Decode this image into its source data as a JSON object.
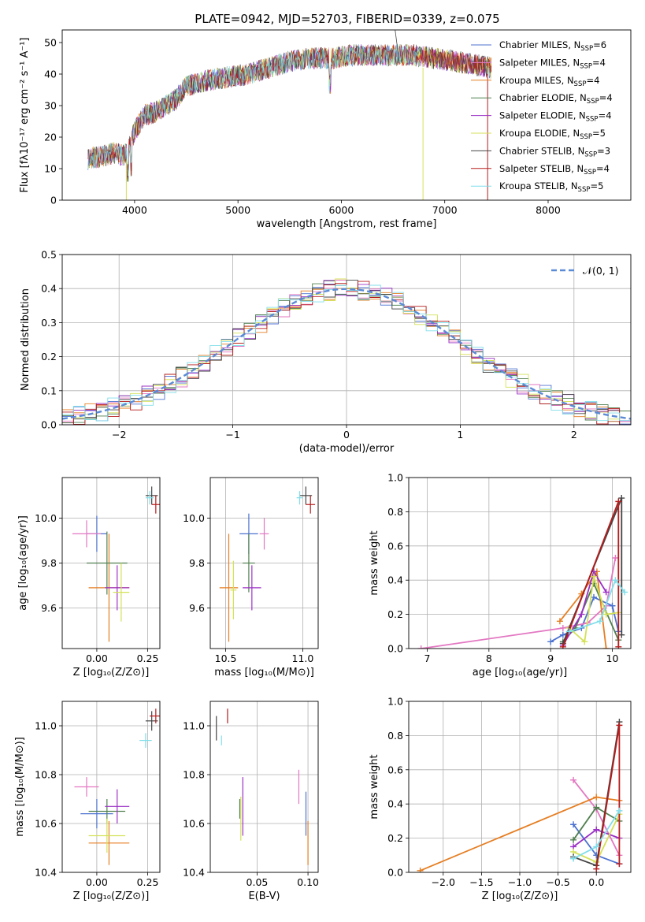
{
  "figure": {
    "title": "PLATE=0942, MJD=52703, FIBERID=0339, z=0.075",
    "colors": [
      "#4c72d0",
      "#e377c2",
      "#e67e22",
      "#4f7f4f",
      "#9b30c6",
      "#d4e157",
      "#444444",
      "#b71c1c",
      "#80deea"
    ],
    "gaussian_color": "#5b8ad6",
    "grid_color": "#b0b0b0"
  },
  "chart_data": [
    {
      "type": "line",
      "panel": "spectrum",
      "xlabel": "wavelength [Angstrom, rest frame]",
      "ylabel": "Flux [fλ10⁻¹⁷ erg cm⁻² s⁻¹ A⁻¹]",
      "xlim": [
        3300,
        8800
      ],
      "ylim": [
        0,
        54
      ],
      "xticks": [
        4000,
        5000,
        6000,
        7000,
        8000
      ],
      "yticks": [
        0,
        10,
        20,
        30,
        40,
        50
      ],
      "grid": false,
      "legend_position": "top-right",
      "envelope": {
        "x": [
          3550,
          3700,
          3800,
          3900,
          3950,
          4000,
          4100,
          4200,
          4300,
          4400,
          4500,
          4700,
          4900,
          5100,
          5300,
          5500,
          5700,
          5900,
          6100,
          6300,
          6500,
          6700,
          6900,
          7100,
          7300,
          7450
        ],
        "y": [
          13,
          14,
          15,
          14,
          17,
          22,
          27,
          28,
          30,
          32,
          36,
          38,
          39,
          40,
          42,
          44,
          45,
          45,
          46,
          46,
          46,
          46,
          45,
          44,
          43,
          42
        ]
      },
      "series": [
        {
          "name": "Chabrier MILES, N",
          "sub": "SSP",
          "suffix": "=6"
        },
        {
          "name": "Salpeter MILES, N",
          "sub": "SSP",
          "suffix": "=4"
        },
        {
          "name": "Kroupa MILES, N",
          "sub": "SSP",
          "suffix": "=4"
        },
        {
          "name": "Chabrier ELODIE, N",
          "sub": "SSP",
          "suffix": "=4"
        },
        {
          "name": "Salpeter ELODIE, N",
          "sub": "SSP",
          "suffix": "=4"
        },
        {
          "name": "Kroupa ELODIE, N",
          "sub": "SSP",
          "suffix": "=5"
        },
        {
          "name": "Chabrier STELIB, N",
          "sub": "SSP",
          "suffix": "=3"
        },
        {
          "name": "Salpeter STELIB, N",
          "sub": "SSP",
          "suffix": "=4"
        },
        {
          "name": "Kroupa STELIB, N",
          "sub": "SSP",
          "suffix": "=5"
        }
      ]
    },
    {
      "type": "histogram",
      "panel": "residuals",
      "xlabel": "(data-model)/error",
      "ylabel": "Normed distribution",
      "xlim": [
        -2.5,
        2.5
      ],
      "ylim": [
        0,
        0.5
      ],
      "xticks": [
        -2,
        -1,
        0,
        1,
        2
      ],
      "yticks": [
        0.0,
        0.1,
        0.2,
        0.3,
        0.4,
        0.5
      ],
      "grid": true,
      "legend": "𝒩(0, 1)",
      "legend_position": "top-right",
      "bin_edges_start": -2.5,
      "bin_width": 0.1,
      "n_bins": 50
    },
    {
      "type": "scatter",
      "panel": "age-vs-Z",
      "xlabel": "Z [log₁₀(Z/Z⊙)]",
      "ylabel": "age  [log₁₀(age/yr)]",
      "xlim": [
        -0.17,
        0.31
      ],
      "ylim": [
        9.42,
        10.18
      ],
      "xticks": [
        0.0,
        0.25
      ],
      "xtick_labels": [
        "0.00",
        "0.25"
      ],
      "yticks": [
        9.6,
        9.8,
        10.0
      ],
      "grid": true,
      "points": [
        {
          "x": 0.0,
          "y": 9.93,
          "xerr": 0.05,
          "yerr": 0.08
        },
        {
          "x": -0.05,
          "y": 9.93,
          "xerr": 0.07,
          "yerr": 0.06
        },
        {
          "x": 0.06,
          "y": 9.69,
          "xerr": 0.1,
          "yerr": 0.24
        },
        {
          "x": 0.05,
          "y": 9.8,
          "xerr": 0.1,
          "yerr": 0.14
        },
        {
          "x": 0.1,
          "y": 9.69,
          "xerr": 0.06,
          "yerr": 0.1
        },
        {
          "x": 0.12,
          "y": 9.67,
          "xerr": 0.04,
          "yerr": 0.13
        },
        {
          "x": 0.27,
          "y": 10.1,
          "xerr": 0.03,
          "yerr": 0.04
        },
        {
          "x": 0.29,
          "y": 10.06,
          "xerr": 0.02,
          "yerr": 0.04
        },
        {
          "x": 0.26,
          "y": 10.09,
          "xerr": 0.02,
          "yerr": 0.03
        }
      ]
    },
    {
      "type": "scatter",
      "panel": "age-vs-mass",
      "xlabel": "mass [log₁₀(M/M⊙)]",
      "xlim": [
        10.4,
        11.1
      ],
      "ylim": [
        9.42,
        10.18
      ],
      "xticks": [
        10.5,
        11.0
      ],
      "xtick_labels": [
        "10.5",
        "11.0"
      ],
      "yticks": [
        9.6,
        9.8,
        10.0
      ],
      "grid": true,
      "points": [
        {
          "x": 10.65,
          "y": 9.93,
          "xerr": 0.06,
          "yerr": 0.09
        },
        {
          "x": 10.75,
          "y": 9.93,
          "xerr": 0.03,
          "yerr": 0.07
        },
        {
          "x": 10.52,
          "y": 9.69,
          "xerr": 0.06,
          "yerr": 0.24
        },
        {
          "x": 10.65,
          "y": 9.8,
          "xerr": 0.04,
          "yerr": 0.13
        },
        {
          "x": 10.67,
          "y": 9.69,
          "xerr": 0.06,
          "yerr": 0.1
        },
        {
          "x": 10.55,
          "y": 9.68,
          "xerr": 0.02,
          "yerr": 0.13
        },
        {
          "x": 11.02,
          "y": 10.1,
          "xerr": 0.04,
          "yerr": 0.04
        },
        {
          "x": 11.05,
          "y": 10.06,
          "xerr": 0.03,
          "yerr": 0.04
        },
        {
          "x": 10.98,
          "y": 10.09,
          "xerr": 0.02,
          "yerr": 0.03
        }
      ]
    },
    {
      "type": "line",
      "panel": "weight-vs-age",
      "xlabel": "age  [log₁₀(age/yr)]",
      "ylabel": "mass weight",
      "xlim": [
        6.7,
        10.3
      ],
      "ylim": [
        0,
        1.0
      ],
      "xticks": [
        7,
        8,
        9,
        10
      ],
      "yticks": [
        0.0,
        0.2,
        0.4,
        0.6,
        0.8,
        1.0
      ],
      "grid": true,
      "series": [
        {
          "x": [
            9.0,
            9.2,
            9.5,
            9.7,
            10.0,
            10.1
          ],
          "y": [
            0.04,
            0.08,
            0.12,
            0.3,
            0.25,
            0.1
          ]
        },
        {
          "x": [
            6.9,
            9.2,
            9.6,
            9.9,
            10.05
          ],
          "y": [
            0.0,
            0.12,
            0.15,
            0.25,
            0.53
          ]
        },
        {
          "x": [
            9.15,
            9.5,
            9.75,
            9.9
          ],
          "y": [
            0.16,
            0.32,
            0.45,
            0.0
          ]
        },
        {
          "x": [
            9.2,
            9.4,
            9.7,
            10.1
          ],
          "y": [
            0.04,
            0.12,
            0.38,
            0.05
          ]
        },
        {
          "x": [
            9.2,
            9.5,
            9.7,
            9.9
          ],
          "y": [
            0.02,
            0.2,
            0.45,
            0.33
          ]
        },
        {
          "x": [
            9.3,
            9.55,
            9.7,
            9.9,
            10.1
          ],
          "y": [
            0.12,
            0.04,
            0.42,
            0.2,
            0.21
          ]
        },
        {
          "x": [
            9.2,
            10.15,
            10.15
          ],
          "y": [
            0.03,
            0.88,
            0.08
          ]
        },
        {
          "x": [
            9.2,
            10.1,
            10.1
          ],
          "y": [
            0.01,
            0.86,
            0.01
          ]
        },
        {
          "x": [
            9.3,
            9.8,
            10.05,
            10.2
          ],
          "y": [
            0.1,
            0.16,
            0.4,
            0.33
          ]
        }
      ]
    },
    {
      "type": "scatter",
      "panel": "mass-vs-Z",
      "xlabel": "Z [log₁₀(Z/Z⊙)]",
      "ylabel": "mass [log₁₀(M/M⊙)]",
      "xlim": [
        -0.17,
        0.31
      ],
      "ylim": [
        10.4,
        11.1
      ],
      "xticks": [
        0.0,
        0.25
      ],
      "xtick_labels": [
        "0.00",
        "0.25"
      ],
      "yticks": [
        10.4,
        10.6,
        10.8,
        11.0
      ],
      "grid": true,
      "points": [
        {
          "x": 0.0,
          "y": 10.64,
          "xerr": 0.08,
          "yerr": 0.06
        },
        {
          "x": -0.05,
          "y": 10.75,
          "xerr": 0.06,
          "yerr": 0.04
        },
        {
          "x": 0.06,
          "y": 10.52,
          "xerr": 0.1,
          "yerr": 0.09
        },
        {
          "x": 0.05,
          "y": 10.65,
          "xerr": 0.09,
          "yerr": 0.05
        },
        {
          "x": 0.1,
          "y": 10.67,
          "xerr": 0.06,
          "yerr": 0.07
        },
        {
          "x": 0.05,
          "y": 10.55,
          "xerr": 0.09,
          "yerr": 0.07
        },
        {
          "x": 0.27,
          "y": 11.02,
          "xerr": 0.03,
          "yerr": 0.04
        },
        {
          "x": 0.29,
          "y": 11.04,
          "xerr": 0.03,
          "yerr": 0.03
        },
        {
          "x": 0.24,
          "y": 10.94,
          "xerr": 0.03,
          "yerr": 0.03
        }
      ]
    },
    {
      "type": "scatter",
      "panel": "mass-vs-EBV",
      "xlabel": "E(B-V)",
      "xlim": [
        0.004,
        0.11
      ],
      "ylim": [
        10.4,
        11.1
      ],
      "xticks": [
        0.05,
        0.1
      ],
      "xtick_labels": [
        "0.05",
        "0.10"
      ],
      "yticks": [
        10.4,
        10.6,
        10.8,
        11.0
      ],
      "grid": true,
      "points": [
        {
          "x": 0.098,
          "y": 10.64,
          "xerr": 0.0,
          "yerr": 0.09
        },
        {
          "x": 0.091,
          "y": 10.75,
          "xerr": 0.0,
          "yerr": 0.07
        },
        {
          "x": 0.1,
          "y": 10.52,
          "xerr": 0.0,
          "yerr": 0.09
        },
        {
          "x": 0.033,
          "y": 10.66,
          "xerr": 0.0,
          "yerr": 0.04
        },
        {
          "x": 0.036,
          "y": 10.67,
          "xerr": 0.0,
          "yerr": 0.12
        },
        {
          "x": 0.034,
          "y": 10.62,
          "xerr": 0.0,
          "yerr": 0.09
        },
        {
          "x": 0.01,
          "y": 10.99,
          "xerr": 0.0,
          "yerr": 0.05
        },
        {
          "x": 0.021,
          "y": 11.04,
          "xerr": 0.0,
          "yerr": 0.03
        },
        {
          "x": 0.015,
          "y": 10.94,
          "xerr": 0.0,
          "yerr": 0.02
        }
      ]
    },
    {
      "type": "line",
      "panel": "weight-vs-Z",
      "xlabel": "Z [log₁₀(Z/Z⊙)]",
      "ylabel": "mass weight",
      "xlim": [
        -2.45,
        0.45
      ],
      "ylim": [
        0,
        1.0
      ],
      "xticks": [
        -2.0,
        -1.5,
        -1.0,
        -0.5,
        0.0
      ],
      "xtick_labels": [
        "−2.0",
        "−1.5",
        "−1.0",
        "−0.5",
        "0.0"
      ],
      "yticks": [
        0.0,
        0.2,
        0.4,
        0.6,
        0.8,
        1.0
      ],
      "grid": true,
      "series": [
        {
          "x": [
            -0.3,
            0.0,
            0.3
          ],
          "y": [
            0.28,
            0.1,
            0.05
          ]
        },
        {
          "x": [
            -0.3,
            0.0,
            0.3
          ],
          "y": [
            0.54,
            0.37,
            0.1
          ]
        },
        {
          "x": [
            -2.3,
            0.0,
            0.3
          ],
          "y": [
            0.01,
            0.44,
            0.42
          ]
        },
        {
          "x": [
            -0.3,
            0.0,
            0.3
          ],
          "y": [
            0.19,
            0.38,
            0.3
          ]
        },
        {
          "x": [
            -0.3,
            0.0,
            0.3
          ],
          "y": [
            0.15,
            0.25,
            0.2
          ]
        },
        {
          "x": [
            -0.3,
            0.0,
            0.3
          ],
          "y": [
            0.12,
            0.06,
            0.34
          ]
        },
        {
          "x": [
            -0.3,
            0.0,
            0.3
          ],
          "y": [
            0.09,
            0.04,
            0.88
          ]
        },
        {
          "x": [
            0.0,
            0.3,
            0.3
          ],
          "y": [
            0.02,
            0.86,
            0.05
          ]
        },
        {
          "x": [
            -0.3,
            0.0,
            0.3
          ],
          "y": [
            0.08,
            0.15,
            0.36
          ]
        }
      ]
    }
  ]
}
